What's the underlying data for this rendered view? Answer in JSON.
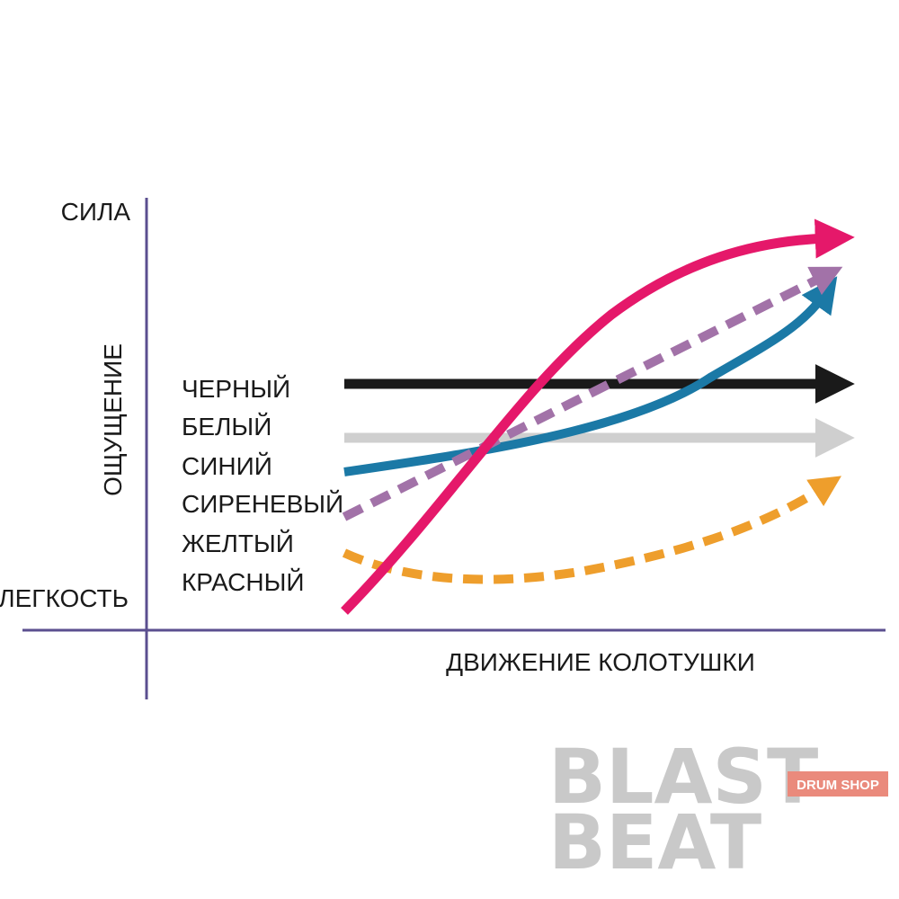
{
  "axis": {
    "y_top": "СИЛА",
    "y_bottom": "ЛЕГКОСТЬ",
    "y_title": "ОЩУЩЕНИЕ",
    "x_title": "ДВИЖЕНИЕ КОЛОТУШКИ"
  },
  "legend": {
    "items": [
      "ЧЕРНЫЙ",
      "БЕЛЫЙ",
      "СИНИЙ",
      "СИРЕНЕВЫЙ",
      "ЖЕЛТЫЙ",
      "КРАСНЫЙ"
    ]
  },
  "logo": {
    "line1": "BLAST",
    "line2": "BEAT",
    "badge": "DRUM SHOP"
  }
}
